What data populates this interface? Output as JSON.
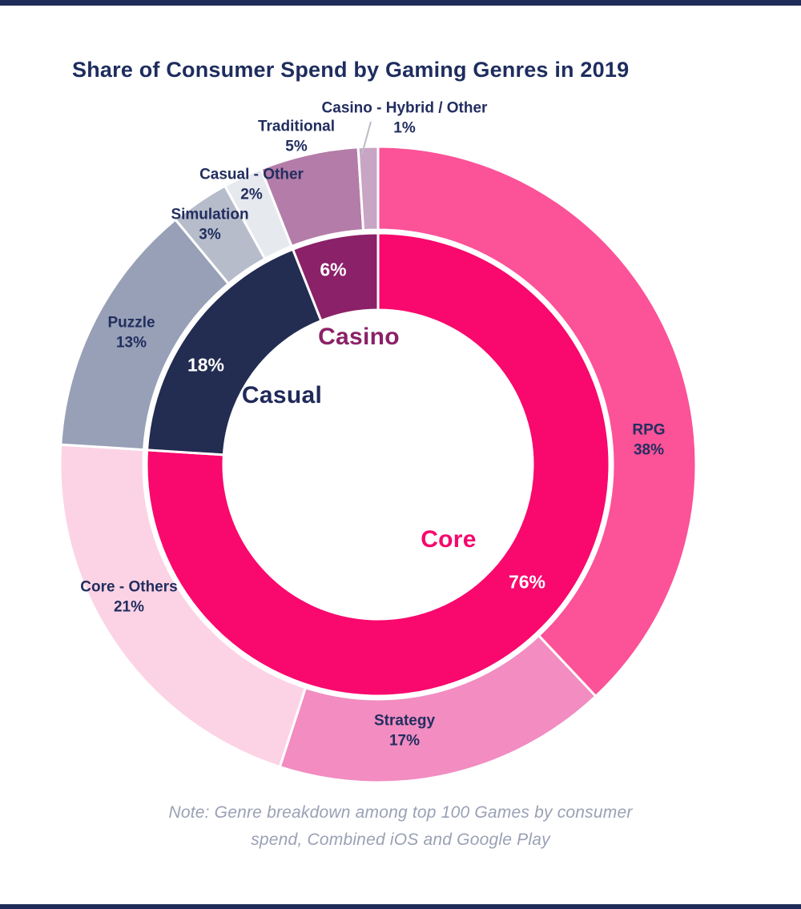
{
  "page": {
    "title": "Share of Consumer Spend by Gaming Genres in 2019",
    "note_line1": "Note: Genre breakdown among top 100 Games by consumer",
    "note_line2": "spend, Combined iOS and Google Play",
    "background_color": "#ffffff",
    "edge_bar_color": "#1f2b58",
    "title_color": "#1e2d5e",
    "note_color": "#9aa1b4",
    "watermark_icon": "diamond-gem",
    "watermark_color": "#f0f2f5"
  },
  "chart_data": {
    "type": "donut",
    "title": "Share of Consumer Spend by Gaming Genres in 2019",
    "units": "percent share of consumer spend",
    "start_angle_deg": 0,
    "direction": "clockwise",
    "label_text_color": "#222e5f",
    "separator_color": "#ffffff",
    "rings": [
      {
        "name": "inner",
        "segments": [
          {
            "label": "Core",
            "value": 76,
            "pct": "76%",
            "color": "#f9086d",
            "value_label_color": "#ffffff",
            "name_label_color": "#f5086c"
          },
          {
            "label": "Casual",
            "value": 18,
            "pct": "18%",
            "color": "#232c51",
            "value_label_color": "#ffffff",
            "name_label_color": "#20295a"
          },
          {
            "label": "Casino",
            "value": 6,
            "pct": "6%",
            "color": "#8b2168",
            "value_label_color": "#ffffff",
            "name_label_color": "#8b2168"
          }
        ]
      },
      {
        "name": "outer",
        "segments": [
          {
            "label": "RPG",
            "value": 38,
            "pct": "38%",
            "color": "#fb5298"
          },
          {
            "label": "Strategy",
            "value": 17,
            "pct": "17%",
            "color": "#f28cc1"
          },
          {
            "label": "Core - Others",
            "value": 21,
            "pct": "21%",
            "color": "#fcd3e5"
          },
          {
            "label": "Puzzle",
            "value": 13,
            "pct": "13%",
            "color": "#97a0b6"
          },
          {
            "label": "Simulation",
            "value": 3,
            "pct": "3%",
            "color": "#b6bcca"
          },
          {
            "label": "Casual - Other",
            "value": 2,
            "pct": "2%",
            "color": "#e6e9ee"
          },
          {
            "label": "Traditional",
            "value": 5,
            "pct": "5%",
            "color": "#b47ca8"
          },
          {
            "label": "Casino - Hybrid / Other",
            "value": 1,
            "pct": "1%",
            "color": "#c9a5c5"
          }
        ]
      }
    ]
  }
}
